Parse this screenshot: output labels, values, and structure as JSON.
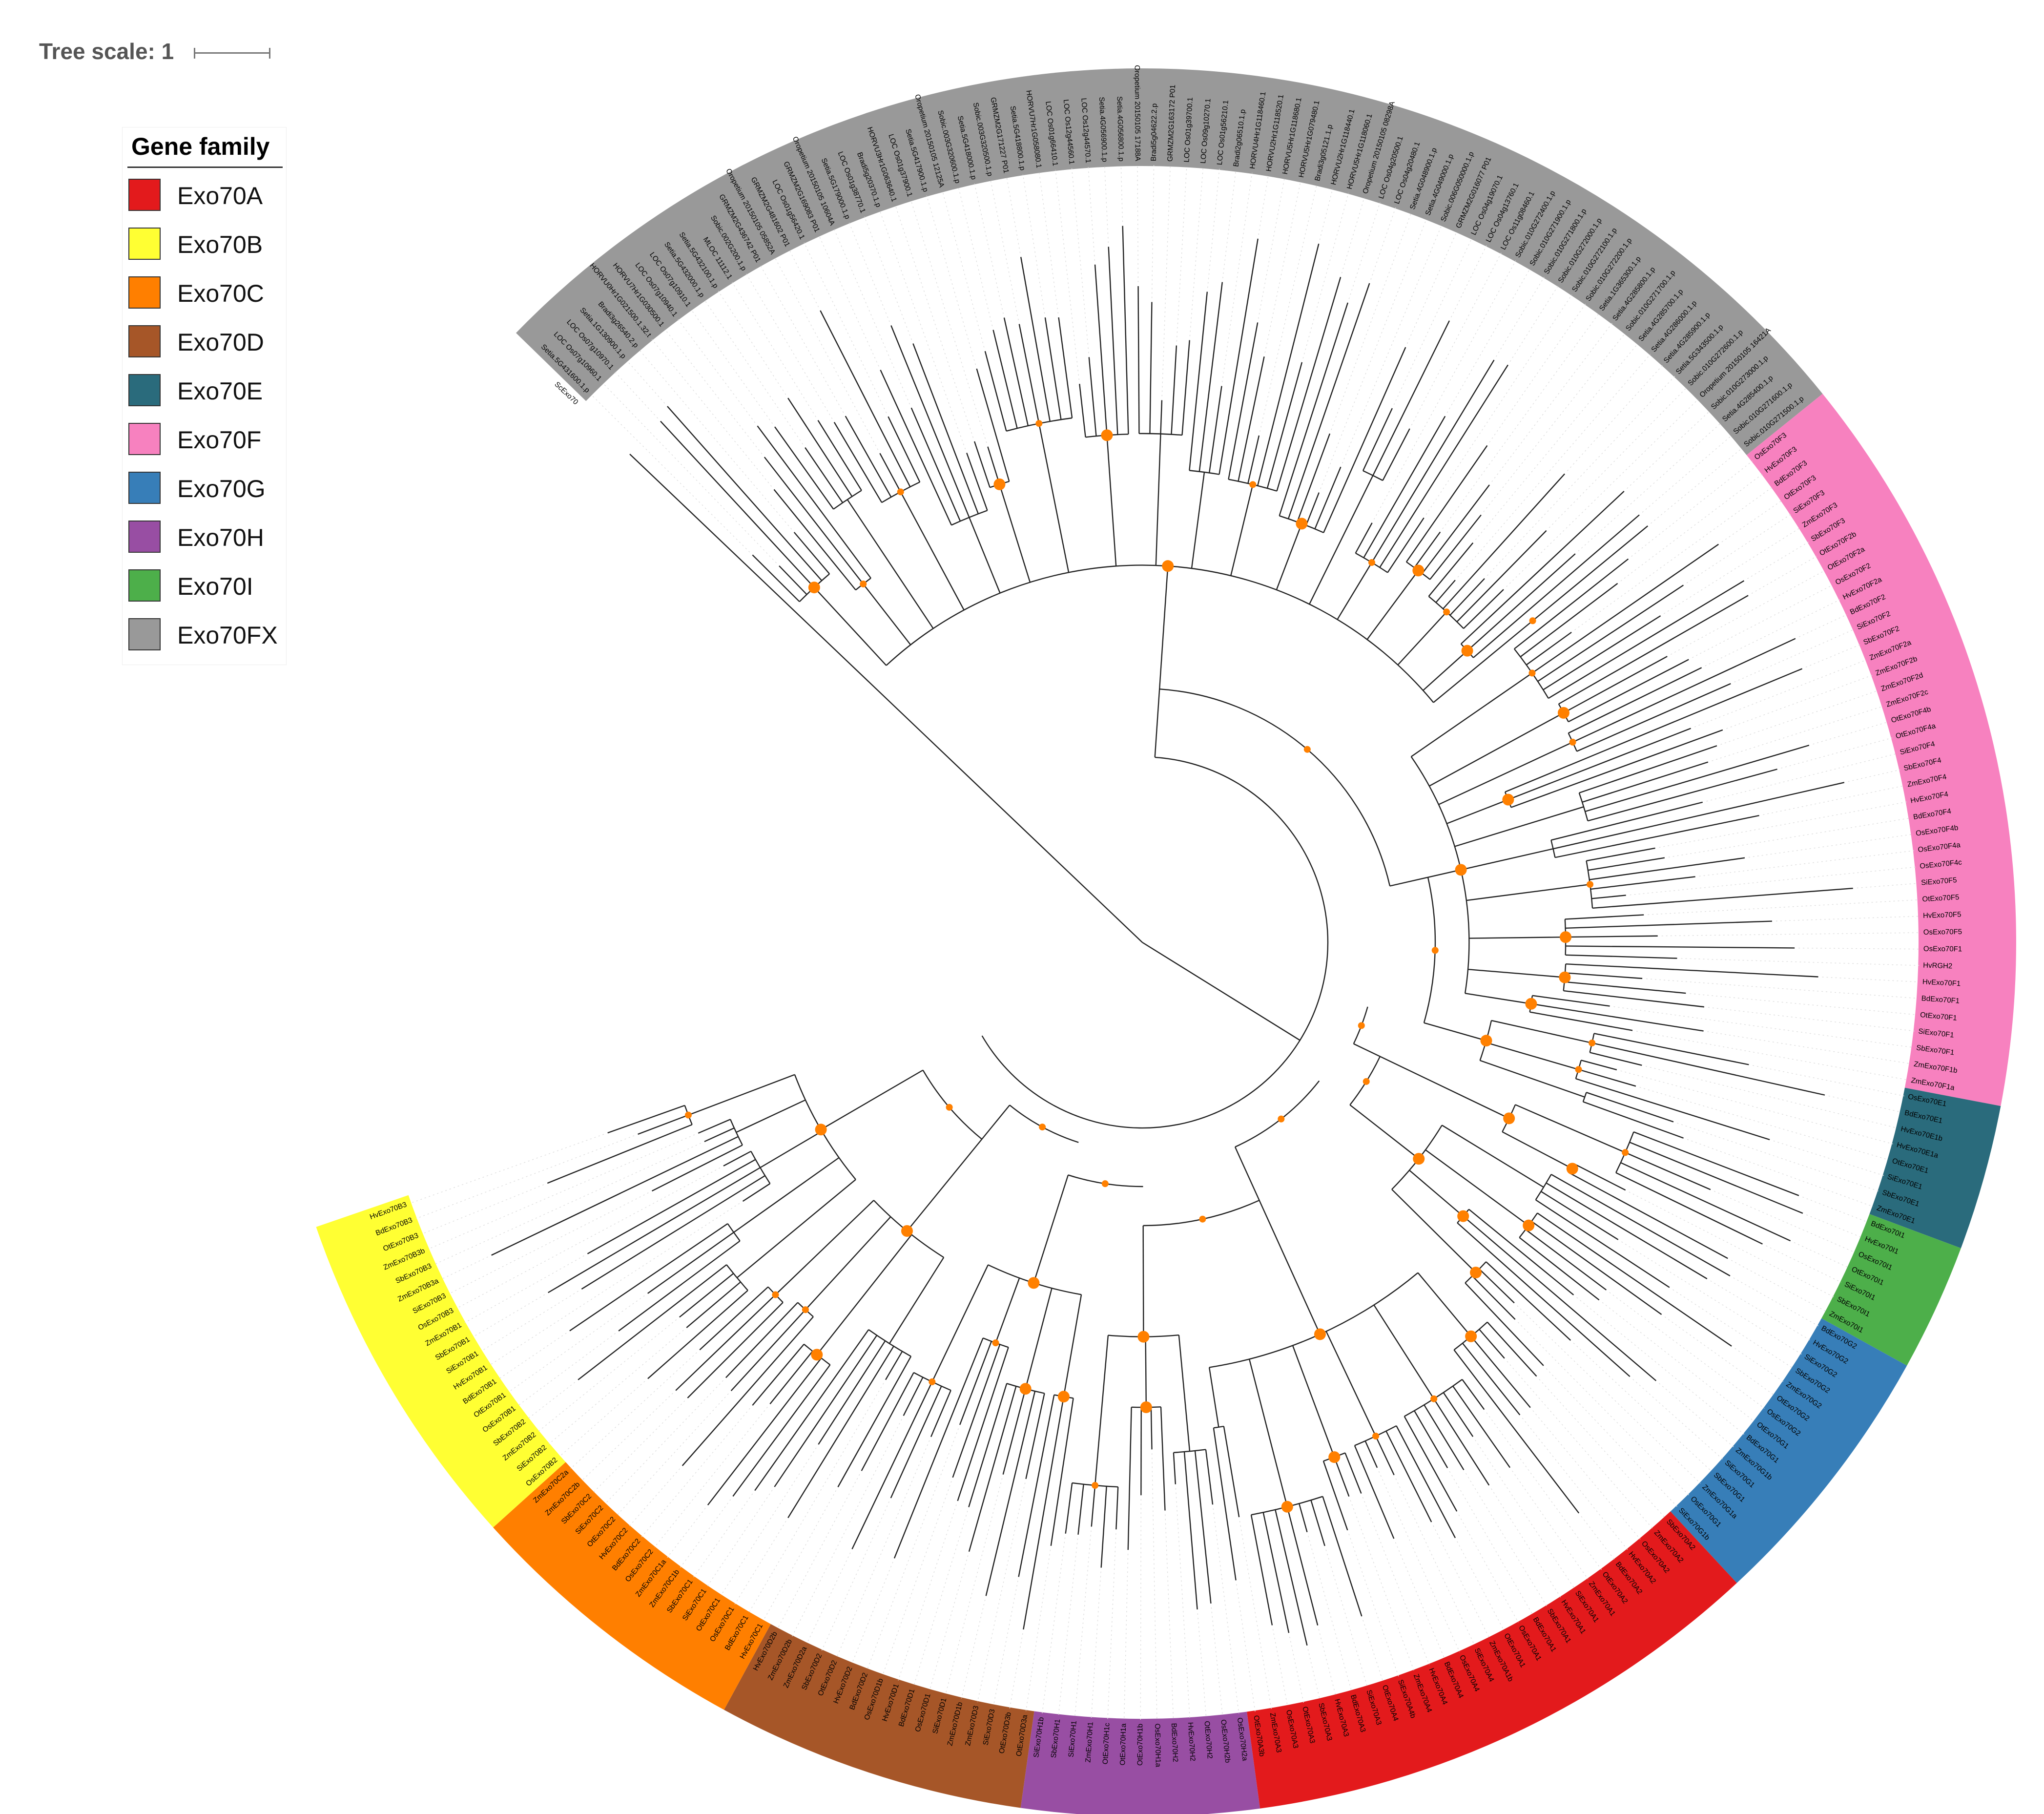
{
  "tree_scale": {
    "label": "Tree scale: 1"
  },
  "legend": {
    "title": "Gene family",
    "items": [
      {
        "label": "Exo70A",
        "color": "#e31a1c"
      },
      {
        "label": "Exo70B",
        "color": "#ffff33"
      },
      {
        "label": "Exo70C",
        "color": "#ff7f00"
      },
      {
        "label": "Exo70D",
        "color": "#a65628"
      },
      {
        "label": "Exo70E",
        "color": "#2a6b7c"
      },
      {
        "label": "Exo70F",
        "color": "#f781bf"
      },
      {
        "label": "Exo70G",
        "color": "#377eb8"
      },
      {
        "label": "Exo70H",
        "color": "#984ea3"
      },
      {
        "label": "Exo70I",
        "color": "#4daf4a"
      },
      {
        "label": "Exo70FX",
        "color": "#999999"
      }
    ]
  },
  "bootstrap_color": "#ff8000",
  "outgroup": "ScExo70",
  "clades": [
    {
      "family": "Exo70FX",
      "color": "#999999",
      "leaves": [
        "Setia.5G431600.1.p",
        "LOC Os07g10960.1",
        "LOC Os07g10970.1",
        "Setia.1G130900.1.p",
        "Bradi3g26540.2.p",
        "HORVU0Hr1G021500.1.32.t",
        "HORVU7Hr1G030500.1",
        "LOC Os07g10940.1",
        "LOC Os07g10910.1",
        "Setia.5G432000.1.p",
        "Setia.5G432100.1.p",
        "MLOC 11112.1",
        "Sobic.002G200.1.p",
        "GRMZM2G436742 P01",
        "Oropetium 20150105 05852A",
        "GRMZM2G481602 P01",
        "LOC Os01g56420.1",
        "GRMZM2G169083 P01",
        "Oropetium 20150105 10604A",
        "Setia.5G179000.1.p",
        "LOC Os01g38770.1",
        "Bradi5g20370.1.p",
        "HORVU3Hr1G063640.1",
        "LOC Os01g37900.1",
        "Setia.5G417900.1.p",
        "Oropetium 20150105 12125A",
        "Sobic.003G320600.1.p",
        "Setia.5G418000.1.p",
        "Sobic.003G320500.1.p",
        "GRMZM2G171227 P01",
        "Setia.5G418800.1.p",
        "HORVU7Hr1G058080.1",
        "LOC Os01g66410.1",
        "LOC Os12g44560.1",
        "LOC Os12g44570.1",
        "Setia.4G056900.1.p",
        "Setia.4G056800.1.p",
        "Oropetium 20150105 17188A",
        "Bradi5g04622.2.p",
        "GRMZM2G163172 P01",
        "LOC Os01g39700.1",
        "LOC Os09g10270.1",
        "LOC Os01g56210.1",
        "Bradi2g06510.1.p",
        "HORVU4Hr1G118460.1",
        "HORVU2Hr1G118520.1",
        "HORVU5Hr1G118680.1",
        "HORVU5Hr1G079480.1",
        "Bradi3g05121.1.p",
        "HORVU2Hr1G118440.1",
        "HORVU5Hr1G118060.1",
        "Oropetium 20150105 08298A",
        "LOC Os04g20500.1",
        "LOC Os04g20480.1",
        "Setia.4G048900.1.p",
        "Setia.4G049000.1.p",
        "Sobic.006G050000.1.p",
        "GRMZM2G016077 P01",
        "LOC Os04g19070.1",
        "LOC Os04g13760.1",
        "LOC Os11g08460.1",
        "Sobic.010G272400.1.p",
        "Sobic.010G271900.1.p",
        "Sobic.010G271800.1.p",
        "Sobic.010G272000.1.p",
        "Sobic.010G272100.1.p",
        "Sobic.010G272200.1.p",
        "Setia.1G365300.1.p",
        "Setia.4G285800.1.p",
        "Sobic.010G271700.1.p",
        "Setia.4G285700.1.p",
        "Setia.4G286000.1.p",
        "Setia.4G285900.1.p",
        "Setia.5G343500.1.p",
        "Sobic.010G272600.1.p",
        "Oropetium 20150105 16421A",
        "Sobic.010G273000.1.p",
        "Setia.4G285400.1.p",
        "Sobic.010G271600.1.p",
        "Sobic.010G271500.1.p"
      ]
    },
    {
      "family": "Exo70F",
      "color": "#f781bf",
      "leaves": [
        "OsExo70F3",
        "HvExo70F3",
        "BdExo70F3",
        "OtExo70F3",
        "SiExo70F3",
        "ZmExo70F3",
        "SbExo70F3",
        "OtExo70F2b",
        "OtExo70F2a",
        "OsExo70F2",
        "HvExo70F2a",
        "BdExo70F2",
        "SiExo70F2",
        "SbExo70F2",
        "ZmExo70F2a",
        "ZmExo70F2b",
        "ZmExo70F2d",
        "ZmExo70F2c",
        "OtExo70F4b",
        "OtExo70F4a",
        "SiExo70F4",
        "SbExo70F4",
        "ZmExo70F4",
        "HvExo70F4",
        "BdExo70F4",
        "OsExo70F4b",
        "OsExo70F4a",
        "OsExo70F4c",
        "SiExo70F5",
        "OtExo70F5",
        "HvExo70F5",
        "OsExo70F5",
        "OsExo70F1",
        "HvRGH2",
        "HvExo70F1",
        "BdExo70F1",
        "OtExo70F1",
        "SiExo70F1",
        "SbExo70F1",
        "ZmExo70F1b",
        "ZmExo70F1a"
      ]
    },
    {
      "family": "Exo70E",
      "color": "#2a6b7c",
      "leaves": [
        "OsExo70E1",
        "BdExo70E1",
        "HvExo70E1b",
        "HvExo70E1a",
        "OtExo70E1",
        "SiExo70E1",
        "SbExo70E1",
        "ZmExo70E1"
      ]
    },
    {
      "family": "Exo70I",
      "color": "#4daf4a",
      "leaves": [
        "BdExo70I1",
        "HvExo70I1",
        "OsExo70I1",
        "OtExo70I1",
        "SiExo70I1",
        "SbExo70I1",
        "ZmExo70I1"
      ]
    },
    {
      "family": "Exo70G",
      "color": "#377eb8",
      "leaves": [
        "BdExo70G2",
        "HvExo70G2",
        "SiExo70G2",
        "SbExo70G2",
        "ZmExo70G2",
        "OtExo70G2",
        "OsExo70G2",
        "OtExo70G1",
        "BdExo70G1",
        "ZmExo70G1b",
        "SiExo70G1",
        "SbExo70G1",
        "ZmExo70G1a",
        "OsExo70G1",
        "SiExo70G1b"
      ]
    },
    {
      "family": "Exo70A",
      "color": "#e31a1c",
      "leaves": [
        "SbExo70A2",
        "ZmExo70A2",
        "OsExo70A2",
        "HvExo70A2",
        "BdExo70A2",
        "OtExo70A2",
        "ZmExo70A1",
        "SiExo70A1",
        "HvExo70A1",
        "SbExo70A1",
        "BdExo70A1",
        "OsExo70A1",
        "OtExo70A1",
        "ZmExo70A1b",
        "SiExo70A4",
        "OsExo70A4",
        "BdExo70A4",
        "HvExo70A4",
        "ZmExo70A4",
        "SiExo70A4b",
        "OtExo70A4",
        "SiExo70A3",
        "BdExo70A3",
        "HvExo70A3",
        "SbExo70A3",
        "OtExo70A3",
        "OsExo70A3",
        "ZmExo70A3",
        "OtExo70A3b"
      ]
    },
    {
      "family": "Exo70H",
      "color": "#984ea3",
      "leaves": [
        "OsExo70H2a",
        "OsExo70H2b",
        "OtExo70H2",
        "HvExo70H2",
        "BdExo70H2",
        "OsExo70H1a",
        "OtExo70H1b",
        "OtExo70H1a",
        "OtExo70H1c",
        "ZmExo70H1",
        "SiExo70H1",
        "SbExo70H1",
        "SiExo70H1b"
      ]
    },
    {
      "family": "Exo70D",
      "color": "#a65628",
      "leaves": [
        "OtExo70D3a",
        "OtExo70D3b",
        "SiExo70D3",
        "ZmExo70D3",
        "ZmExo70D1b",
        "SiExo70D1",
        "OsExo70D1",
        "BdExo70D1",
        "HvExo70D1",
        "OsExo70D1b",
        "BdExo70D2",
        "HvExo70D2",
        "OtExo70D2",
        "SbExo70D2",
        "ZmExo70D2a",
        "ZmExo70D2b",
        "HvExo70D2b"
      ]
    },
    {
      "family": "Exo70C",
      "color": "#ff7f00",
      "leaves": [
        "HvExo70C1",
        "BdExo70C1",
        "OsExo70C1",
        "OtExo70C1",
        "SiExo70C1",
        "SbExo70C1",
        "ZmExo70C1b",
        "ZmExo70C1a",
        "OsExo70C2",
        "BdExo70C2",
        "HvExo70C2",
        "OtExo70C2",
        "SiExo70C2",
        "SbExo70C2",
        "ZmExo70C2b",
        "ZmExo70C2a"
      ]
    },
    {
      "family": "Exo70B",
      "color": "#ffff33",
      "leaves": [
        "OsExo70B2",
        "SiExo70B2",
        "ZmExo70B2",
        "SbExo70B2",
        "OsExo70B1",
        "OtExo70B1",
        "BdExo70B1",
        "HvExo70B1",
        "SiExo70B1",
        "SbExo70B1",
        "ZmExo70B1",
        "OsExo70B3",
        "SiExo70B3",
        "ZmExo70B3a",
        "SbExo70B3",
        "ZmExo70B3b",
        "OtExo70B3",
        "BdExo70B3",
        "HvExo70B3"
      ]
    }
  ]
}
